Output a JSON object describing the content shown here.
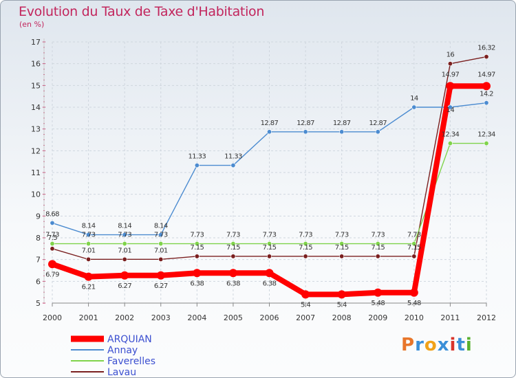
{
  "title": "Evolution du Taux de Taxe d'Habitation",
  "subtitle": "(en %)",
  "logo": {
    "text": "Proxiti",
    "colors": [
      "#e8762a",
      "#3a8fd8",
      "#f0a21a",
      "#3a8fd8",
      "#d9342b",
      "#3a8fd8",
      "#58b02f"
    ]
  },
  "chart_data": {
    "type": "line",
    "categories": [
      "2000",
      "2001",
      "2002",
      "2003",
      "2004",
      "2005",
      "2006",
      "2007",
      "2008",
      "2009",
      "2010",
      "2011",
      "2012"
    ],
    "ylim": [
      5,
      17
    ],
    "yticks": [
      "5",
      "6",
      "7",
      "8",
      "9",
      "10",
      "11",
      "12",
      "13",
      "14",
      "15",
      "16",
      "17"
    ],
    "series": [
      {
        "name": "ARQUIAN",
        "color": "#ff0000",
        "values": [
          6.79,
          6.21,
          6.27,
          6.27,
          6.38,
          6.38,
          6.38,
          5.4,
          5.4,
          5.48,
          5.48,
          14.97,
          14.97
        ],
        "labels": [
          "6.79",
          "6.21",
          "6.27",
          "6.27",
          "6.38",
          "6.38",
          "6.38",
          "5.4",
          "5.4",
          "5.48",
          "5.48",
          "14.97",
          "14.97"
        ]
      },
      {
        "name": "Annay",
        "color": "#4b8bd0",
        "values": [
          8.68,
          8.14,
          8.14,
          8.14,
          11.33,
          11.33,
          12.87,
          12.87,
          12.87,
          12.87,
          14,
          14,
          14.2
        ],
        "labels": [
          "8.68",
          "8.14",
          "8.14",
          "8.14",
          "11.33",
          "11.33",
          "12.87",
          "12.87",
          "12.87",
          "12.87",
          "14",
          "14",
          "14.2"
        ]
      },
      {
        "name": "Faverelles",
        "color": "#7fd34a",
        "values": [
          7.73,
          7.73,
          7.73,
          7.73,
          7.73,
          7.73,
          7.73,
          7.73,
          7.73,
          7.73,
          7.73,
          12.34,
          12.34
        ],
        "labels": [
          "7.73",
          "7.73",
          "7.73",
          "7.73",
          "7.73",
          "7.73",
          "7.73",
          "7.73",
          "7.73",
          "7.73",
          "7.73",
          "12.34",
          "12.34"
        ]
      },
      {
        "name": "Lavau",
        "color": "#7a1f1f",
        "values": [
          7.5,
          7.01,
          7.01,
          7.01,
          7.15,
          7.15,
          7.15,
          7.15,
          7.15,
          7.15,
          7.15,
          16,
          16.32
        ],
        "labels": [
          "7.5",
          "7.01",
          "7.01",
          "7.01",
          "7.15",
          "7.15",
          "7.15",
          "7.15",
          "7.15",
          "7.15",
          "7.15",
          "16",
          "16.32"
        ]
      }
    ],
    "legend_position": "bottom-left"
  }
}
